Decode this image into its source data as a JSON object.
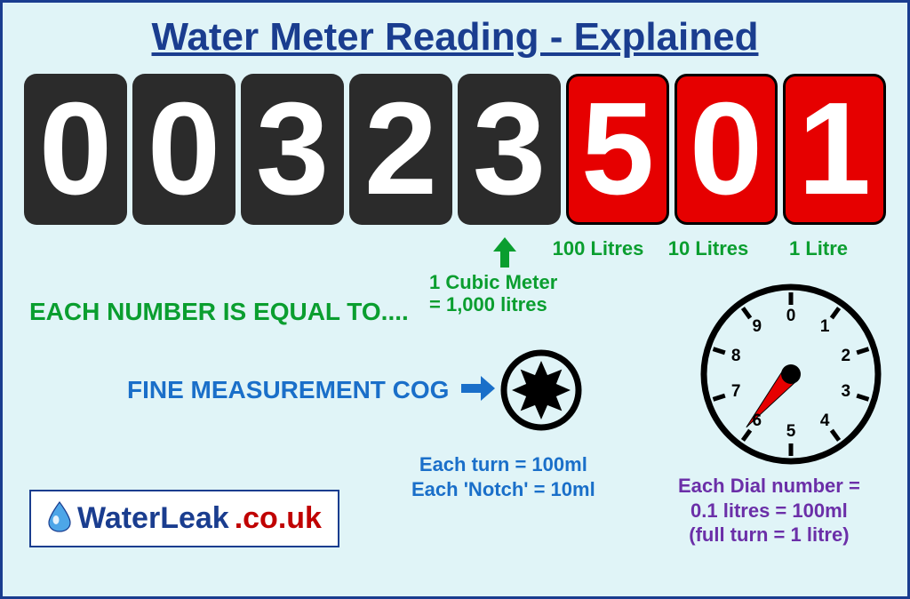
{
  "title": "Water Meter Reading - Explained",
  "digits": {
    "black": [
      "0",
      "0",
      "3",
      "2",
      "3"
    ],
    "red": [
      "5",
      "0",
      "1"
    ]
  },
  "red_labels": [
    "100 Litres",
    "10 Litres",
    "1 Litre"
  ],
  "cubic_label_line1": "1 Cubic Meter",
  "cubic_label_line2": "= 1,000 litres",
  "each_number_text": "EACH NUMBER IS EQUAL TO....",
  "fine_measurement_text": "FINE MEASUREMENT COG",
  "cog_label_line1": "Each turn = 100ml",
  "cog_label_line2": "Each 'Notch' = 10ml",
  "dial_label_line1": "Each Dial number =",
  "dial_label_line2": "0.1 litres = 100ml",
  "dial_label_line3": "(full turn = 1 litre)",
  "dial_numbers": [
    "0",
    "1",
    "2",
    "3",
    "4",
    "5",
    "6",
    "7",
    "8",
    "9"
  ],
  "dial_pointer_angle": 130,
  "logo": {
    "text1": "WaterLeak",
    "text2": ".co.uk"
  },
  "colors": {
    "bg": "#e0f4f7",
    "border": "#1a3d8f",
    "title": "#1a3d8f",
    "green": "#0a9e2f",
    "blue": "#1a6fc9",
    "purple": "#6b2fa8",
    "digit_black": "#2b2b2b",
    "digit_red": "#e60000",
    "logo_red": "#c00000"
  }
}
